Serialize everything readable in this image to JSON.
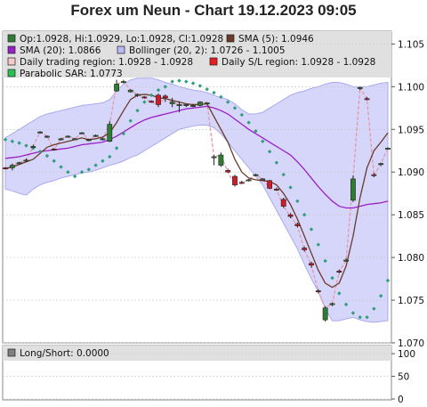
{
  "chart_data": {
    "type": "candlestick",
    "title": "Forex um Neun - Chart 19.12.2023 09:05",
    "ohlc_text": "Op:1.0928, Hi:1.0929, Lo:1.0928, Cl:1.0928",
    "legend": [
      {
        "label": "Op:1.0928, Hi:1.0929, Lo:1.0928, Cl:1.0928",
        "color": "#2e7d32"
      },
      {
        "label": "SMA (5): 1.0946",
        "color": "#6b3a2a"
      },
      {
        "label": "SMA (20): 1.0866",
        "color": "#9b1fc7"
      },
      {
        "label": "Bollinger (20, 2): 1.0726 - 1.1005",
        "color": "#b9b9f5"
      },
      {
        "label": "Daily trading region: 1.0928 - 1.0928",
        "color": "#f4c9c9"
      },
      {
        "label": "Daily S/L region: 1.0928 - 1.0928",
        "color": "#e81c1c"
      },
      {
        "label": "Parabolic SAR: 1.0773",
        "color": "#27c24c"
      }
    ],
    "y_ticks": [
      "1.105",
      "1.100",
      "1.095",
      "1.090",
      "1.085",
      "1.080",
      "1.075",
      "1.070"
    ],
    "ylim": [
      1.07,
      1.1065
    ],
    "sub_legend": "Long/Short: 0.0000",
    "sub_ticks": [
      "100",
      "50",
      "0"
    ],
    "sub_ylim": [
      0,
      110
    ],
    "candles": [
      {
        "o": 1.0905,
        "h": 1.0906,
        "l": 1.0903,
        "c": 1.0904
      },
      {
        "o": 1.0905,
        "h": 1.091,
        "l": 1.0902,
        "c": 1.0908
      },
      {
        "o": 1.091,
        "h": 1.0912,
        "l": 1.0909,
        "c": 1.0911
      },
      {
        "o": 1.0913,
        "h": 1.0916,
        "l": 1.0912,
        "c": 1.0914
      },
      {
        "o": 1.0929,
        "h": 1.0932,
        "l": 1.0928,
        "c": 1.093
      },
      {
        "o": 1.0946,
        "h": 1.0948,
        "l": 1.0945,
        "c": 1.0947
      },
      {
        "o": 1.0941,
        "h": 1.0943,
        "l": 1.094,
        "c": 1.0942
      },
      {
        "o": 1.0927,
        "h": 1.0928,
        "l": 1.0925,
        "c": 1.0926
      },
      {
        "o": 1.0938,
        "h": 1.094,
        "l": 1.0937,
        "c": 1.0939
      },
      {
        "o": 1.0942,
        "h": 1.0943,
        "l": 1.0941,
        "c": 1.0942
      },
      {
        "o": 1.0939,
        "h": 1.094,
        "l": 1.0938,
        "c": 1.0939
      },
      {
        "o": 1.0946,
        "h": 1.0947,
        "l": 1.0945,
        "c": 1.0946
      },
      {
        "o": 1.0937,
        "h": 1.0939,
        "l": 1.0936,
        "c": 1.0938
      },
      {
        "o": 1.0942,
        "h": 1.0944,
        "l": 1.0941,
        "c": 1.0943
      },
      {
        "o": 1.0938,
        "h": 1.094,
        "l": 1.0937,
        "c": 1.0939
      },
      {
        "o": 1.0936,
        "h": 1.096,
        "l": 1.0935,
        "c": 1.0956
      },
      {
        "o": 1.0995,
        "h": 1.1008,
        "l": 1.0994,
        "c": 1.1003
      },
      {
        "o": 1.1005,
        "h": 1.1008,
        "l": 1.1004,
        "c": 1.1006
      },
      {
        "o": 1.0994,
        "h": 1.0997,
        "l": 1.0993,
        "c": 1.0996
      },
      {
        "o": 1.099,
        "h": 1.0992,
        "l": 1.0988,
        "c": 1.0991
      },
      {
        "o": 1.0988,
        "h": 1.0989,
        "l": 1.0986,
        "c": 1.0987
      },
      {
        "o": 1.0983,
        "h": 1.0984,
        "l": 1.0981,
        "c": 1.0982
      },
      {
        "o": 1.099,
        "h": 1.0992,
        "l": 1.0976,
        "c": 1.0979
      },
      {
        "o": 1.0989,
        "h": 1.0991,
        "l": 1.0982,
        "c": 1.0987
      },
      {
        "o": 1.098,
        "h": 1.0987,
        "l": 1.0976,
        "c": 1.0982
      },
      {
        "o": 1.0979,
        "h": 1.0983,
        "l": 1.097,
        "c": 1.0979
      },
      {
        "o": 1.0978,
        "h": 1.098,
        "l": 1.0976,
        "c": 1.0979
      },
      {
        "o": 1.0977,
        "h": 1.098,
        "l": 1.0976,
        "c": 1.0978
      },
      {
        "o": 1.0978,
        "h": 1.0983,
        "l": 1.0977,
        "c": 1.0982
      },
      {
        "o": 1.098,
        "h": 1.0982,
        "l": 1.0979,
        "c": 1.0981
      },
      {
        "o": 1.0918,
        "h": 1.092,
        "l": 1.0908,
        "c": 1.0918
      },
      {
        "o": 1.0908,
        "h": 1.0923,
        "l": 1.0906,
        "c": 1.092
      },
      {
        "o": 1.0902,
        "h": 1.0904,
        "l": 1.0899,
        "c": 1.09
      },
      {
        "o": 1.0895,
        "h": 1.0897,
        "l": 1.0883,
        "c": 1.0885
      },
      {
        "o": 1.0888,
        "h": 1.089,
        "l": 1.0886,
        "c": 1.0887
      },
      {
        "o": 1.089,
        "h": 1.0892,
        "l": 1.0889,
        "c": 1.0891
      },
      {
        "o": 1.0896,
        "h": 1.0898,
        "l": 1.0895,
        "c": 1.0897
      },
      {
        "o": 1.0892,
        "h": 1.0893,
        "l": 1.0891,
        "c": 1.0892
      },
      {
        "o": 1.089,
        "h": 1.0891,
        "l": 1.088,
        "c": 1.0881
      },
      {
        "o": 1.088,
        "h": 1.0882,
        "l": 1.0878,
        "c": 1.0879
      },
      {
        "o": 1.0868,
        "h": 1.087,
        "l": 1.0858,
        "c": 1.086
      },
      {
        "o": 1.085,
        "h": 1.0852,
        "l": 1.0846,
        "c": 1.0848
      },
      {
        "o": 1.0839,
        "h": 1.0841,
        "l": 1.0835,
        "c": 1.0837
      },
      {
        "o": 1.0811,
        "h": 1.0813,
        "l": 1.0807,
        "c": 1.0809
      },
      {
        "o": 1.0793,
        "h": 1.0795,
        "l": 1.0788,
        "c": 1.0791
      },
      {
        "o": 1.0761,
        "h": 1.0763,
        "l": 1.0758,
        "c": 1.076
      },
      {
        "o": 1.0727,
        "h": 1.0743,
        "l": 1.0725,
        "c": 1.0741
      },
      {
        "o": 1.0745,
        "h": 1.0747,
        "l": 1.0743,
        "c": 1.0746
      },
      {
        "o": 1.0784,
        "h": 1.0786,
        "l": 1.0781,
        "c": 1.0783
      },
      {
        "o": 1.0797,
        "h": 1.0799,
        "l": 1.0795,
        "c": 1.0797
      },
      {
        "o": 1.0867,
        "h": 1.0896,
        "l": 1.0865,
        "c": 1.0892
      },
      {
        "o": 1.0998,
        "h": 1.1,
        "l": 1.0996,
        "c": 1.0999
      },
      {
        "o": 1.0986,
        "h": 1.0988,
        "l": 1.0984,
        "c": 1.0985
      },
      {
        "o": 1.0897,
        "h": 1.0899,
        "l": 1.0894,
        "c": 1.0896
      },
      {
        "o": 1.0909,
        "h": 1.0911,
        "l": 1.0907,
        "c": 1.091
      },
      {
        "o": 1.0928,
        "h": 1.0929,
        "l": 1.0928,
        "c": 1.0928
      }
    ],
    "sma5": [
      1.0904,
      1.0906,
      1.0909,
      1.0912,
      1.0915,
      1.0922,
      1.0929,
      1.0932,
      1.0934,
      1.0936,
      1.0938,
      1.094,
      1.0938,
      1.0939,
      1.0941,
      1.0946,
      1.0958,
      1.0972,
      1.0985,
      1.099,
      1.0991,
      1.099,
      1.0987,
      1.0986,
      1.0984,
      1.0982,
      1.098,
      1.0979,
      1.0979,
      1.098,
      1.0965,
      1.095,
      1.0935,
      1.0915,
      1.09,
      1.0893,
      1.0891,
      1.089,
      1.0889,
      1.0885,
      1.0875,
      1.0862,
      1.0845,
      1.0825,
      1.0805,
      1.0785,
      1.077,
      1.0765,
      1.077,
      1.079,
      1.0825,
      1.087,
      1.0905,
      1.0925,
      1.0935,
      1.0946
    ],
    "sma20": [
      1.0916,
      1.0917,
      1.0918,
      1.092,
      1.0922,
      1.0924,
      1.0925,
      1.0926,
      1.0927,
      1.0928,
      1.093,
      1.0932,
      1.0933,
      1.0934,
      1.0935,
      1.0938,
      1.0942,
      1.0947,
      1.0952,
      1.0957,
      1.0961,
      1.0964,
      1.0966,
      1.0968,
      1.097,
      1.0972,
      1.0974,
      1.0975,
      1.0976,
      1.0977,
      1.0975,
      1.0972,
      1.0968,
      1.0962,
      1.0956,
      1.095,
      1.0945,
      1.094,
      1.0935,
      1.093,
      1.0925,
      1.092,
      1.0912,
      1.0903,
      1.0893,
      1.0883,
      1.0874,
      1.0866,
      1.086,
      1.0858,
      1.0858,
      1.086,
      1.0862,
      1.0863,
      1.0864,
      1.0866
    ],
    "boll_upper": [
      1.094,
      1.0945,
      1.095,
      1.0955,
      1.096,
      1.0965,
      1.0968,
      1.097,
      1.0972,
      1.0974,
      1.0976,
      1.0978,
      1.0979,
      1.098,
      1.0981,
      1.0985,
      1.0995,
      1.1003,
      1.1008,
      1.101,
      1.101,
      1.101,
      1.1008,
      1.1005,
      1.1003,
      1.1,
      1.0998,
      1.0996,
      1.0995,
      1.0993,
      1.099,
      1.0987,
      1.0985,
      1.098,
      1.0973,
      1.0968,
      1.0968,
      1.097,
      1.0975,
      1.098,
      1.0985,
      1.099,
      1.0993,
      1.0995,
      1.0998,
      1.1,
      1.1003,
      1.1005,
      1.1005,
      1.1003,
      1.1,
      1.1,
      1.1,
      1.1002,
      1.1004,
      1.1005
    ],
    "boll_lower": [
      1.088,
      1.0878,
      1.0875,
      1.0873,
      1.088,
      1.0885,
      1.0888,
      1.089,
      1.0893,
      1.0895,
      1.0897,
      1.0899,
      1.09,
      1.0902,
      1.0905,
      1.0908,
      1.091,
      1.0913,
      1.0917,
      1.092,
      1.0925,
      1.093,
      1.0935,
      1.094,
      1.0945,
      1.095,
      1.0952,
      1.0954,
      1.0955,
      1.0955,
      1.0952,
      1.0945,
      1.0935,
      1.0925,
      1.0915,
      1.0905,
      1.0895,
      1.0885,
      1.087,
      1.0855,
      1.084,
      1.0825,
      1.081,
      1.0792,
      1.0775,
      1.076,
      1.074,
      1.0726,
      1.0726,
      1.0728,
      1.073,
      1.0727,
      1.0725,
      1.0724,
      1.0725,
      1.0726
    ],
    "sar": [
      1.0938,
      1.0936,
      1.0934,
      1.0931,
      1.0928,
      1.0924,
      1.0919,
      1.0913,
      1.0906,
      1.09,
      1.0895,
      1.09,
      1.0903,
      1.0908,
      1.0913,
      1.0918,
      1.0928,
      1.0945,
      1.096,
      1.0972,
      1.0982,
      1.099,
      1.0996,
      1.1,
      1.1006,
      1.1007,
      1.1006,
      1.1004,
      1.1001,
      1.0997,
      1.0993,
      1.0988,
      1.0982,
      1.0975,
      1.0967,
      1.0958,
      1.0948,
      1.0936,
      1.0924,
      1.0911,
      1.0897,
      1.0882,
      1.0866,
      1.085,
      1.0833,
      1.0815,
      1.0796,
      1.0776,
      1.0758,
      1.0745,
      1.0735,
      1.073,
      1.073,
      1.074,
      1.0755,
      1.0773
    ]
  }
}
